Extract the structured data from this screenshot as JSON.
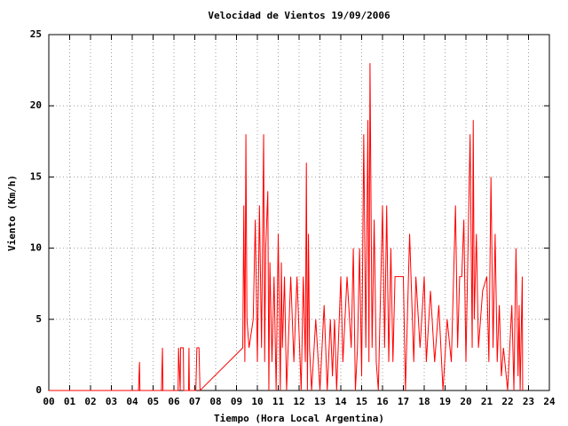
{
  "chart_data": {
    "type": "line",
    "title": "Velocidad de Vientos 19/09/2006",
    "x_label": "Tiempo (Hora Local Argentina)",
    "y_label": "Viento (Km/h)",
    "color": "#ff0000",
    "grid": true,
    "xlim": [
      0,
      24
    ],
    "ylim": [
      0,
      25
    ],
    "xticks": [
      {
        "value": 0,
        "label": "00"
      },
      {
        "value": 1,
        "label": "01"
      },
      {
        "value": 2,
        "label": "02"
      },
      {
        "value": 3,
        "label": "03"
      },
      {
        "value": 4,
        "label": "04"
      },
      {
        "value": 5,
        "label": "05"
      },
      {
        "value": 6,
        "label": "06"
      },
      {
        "value": 7,
        "label": "07"
      },
      {
        "value": 8,
        "label": "08"
      },
      {
        "value": 9,
        "label": "09"
      },
      10,
      11,
      12,
      13,
      14,
      15,
      16,
      17,
      18,
      19,
      20,
      21,
      22,
      23,
      24
    ],
    "yticks": [
      0,
      5,
      10,
      15,
      20,
      25
    ],
    "x": [
      0,
      4.3,
      4.35,
      4.37,
      5.4,
      5.45,
      5.47,
      6.2,
      6.22,
      6.3,
      6.32,
      6.45,
      6.47,
      6.7,
      6.72,
      6.74,
      7.05,
      7.1,
      7.2,
      7.25,
      9.3,
      9.35,
      9.4,
      9.45,
      9.5,
      9.6,
      9.8,
      9.9,
      10.0,
      10.1,
      10.2,
      10.3,
      10.35,
      10.4,
      10.5,
      10.55,
      10.6,
      10.7,
      10.8,
      10.9,
      11.0,
      11.1,
      11.15,
      11.2,
      11.3,
      11.4,
      11.6,
      11.75,
      11.9,
      12.1,
      12.2,
      12.3,
      12.35,
      12.4,
      12.45,
      12.5,
      12.6,
      12.8,
      13.0,
      13.2,
      13.35,
      13.5,
      13.6,
      13.7,
      13.8,
      14.0,
      14.1,
      14.3,
      14.5,
      14.6,
      14.7,
      14.8,
      14.9,
      15.0,
      15.1,
      15.2,
      15.3,
      15.35,
      15.4,
      15.5,
      15.6,
      15.7,
      15.8,
      16.0,
      16.1,
      16.2,
      16.3,
      16.4,
      16.5,
      16.6,
      16.7,
      17.0,
      17.1,
      17.3,
      17.5,
      17.6,
      17.8,
      18.0,
      18.1,
      18.3,
      18.5,
      18.7,
      18.9,
      19.1,
      19.3,
      19.5,
      19.6,
      19.7,
      19.8,
      19.9,
      20.0,
      20.2,
      20.3,
      20.35,
      20.4,
      20.5,
      20.6,
      20.8,
      21.0,
      21.1,
      21.2,
      21.3,
      21.4,
      21.5,
      21.6,
      21.7,
      21.8,
      22.0,
      22.2,
      22.3,
      22.4,
      22.5,
      22.55,
      22.6,
      22.7,
      22.72
    ],
    "values": [
      0,
      0,
      2,
      0,
      0,
      3,
      0,
      0,
      3,
      0,
      3,
      3,
      0,
      0,
      3,
      0,
      0,
      3,
      3,
      0,
      3,
      13,
      2,
      18,
      5,
      3,
      5,
      12,
      2,
      13,
      3,
      18,
      2,
      10,
      14,
      0,
      9,
      2,
      8,
      0,
      11,
      0,
      9,
      3,
      8,
      0,
      8,
      2,
      8,
      0,
      8,
      2,
      16,
      0,
      11,
      3,
      0,
      5,
      0,
      6,
      0,
      5,
      1,
      5,
      0,
      8,
      2,
      8,
      3,
      10,
      0,
      3,
      10,
      1,
      18,
      3,
      19,
      2,
      23,
      3,
      12,
      2,
      0,
      13,
      3,
      13,
      2,
      10,
      2,
      8,
      8,
      8,
      0,
      11,
      2,
      8,
      3,
      8,
      2,
      7,
      2,
      6,
      0,
      5,
      2,
      13,
      3,
      8,
      8,
      12,
      2,
      18,
      3,
      19,
      5,
      11,
      3,
      7,
      8,
      2,
      15,
      3,
      11,
      2,
      6,
      1,
      3,
      0,
      6,
      0,
      10,
      1,
      6,
      0,
      8,
      0
    ]
  }
}
